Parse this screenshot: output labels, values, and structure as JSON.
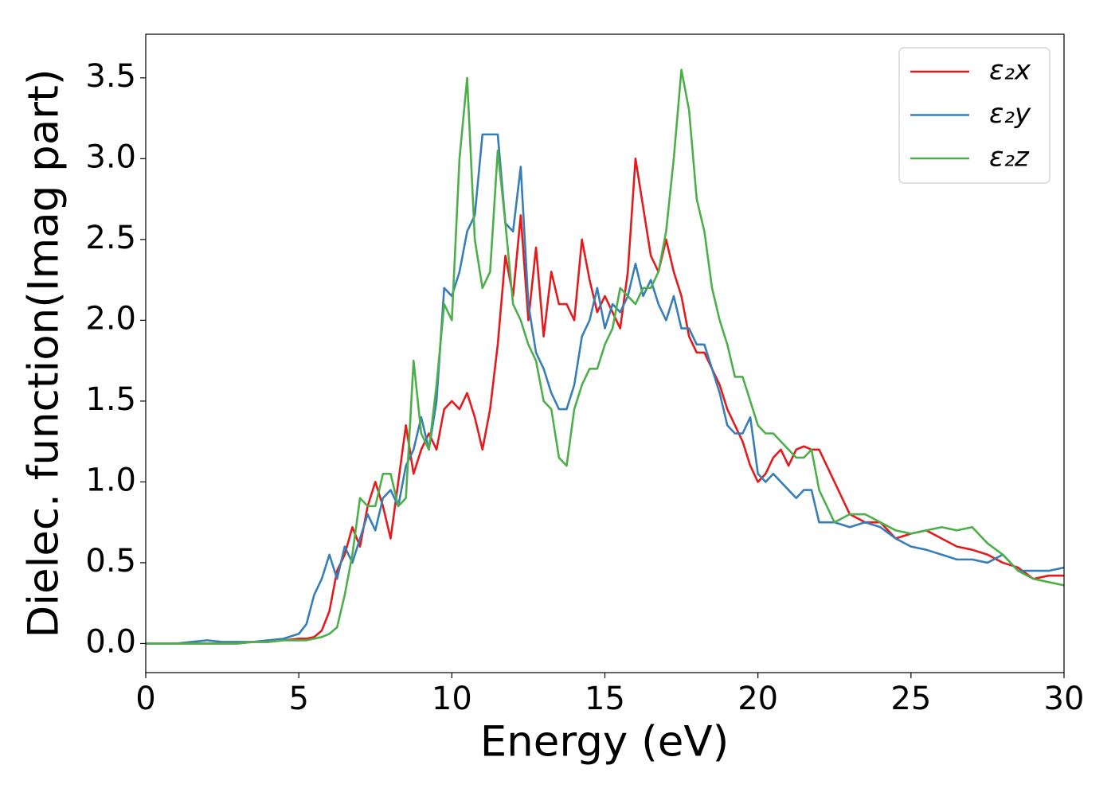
{
  "chart_data": {
    "type": "line",
    "xlabel": "Energy (eV)",
    "ylabel": "Dielec. function(Imag part)",
    "x": [
      0,
      0.5,
      1,
      1.5,
      2,
      2.5,
      3,
      3.5,
      4,
      4.5,
      5,
      5.25,
      5.5,
      5.75,
      6,
      6.25,
      6.5,
      6.75,
      7,
      7.25,
      7.5,
      7.75,
      8,
      8.25,
      8.5,
      8.75,
      9,
      9.25,
      9.5,
      9.75,
      10,
      10.25,
      10.5,
      10.75,
      11,
      11.25,
      11.5,
      11.75,
      12,
      12.25,
      12.5,
      12.75,
      13,
      13.25,
      13.5,
      13.75,
      14,
      14.25,
      14.5,
      14.75,
      15,
      15.25,
      15.5,
      15.75,
      16,
      16.25,
      16.5,
      16.75,
      17,
      17.25,
      17.5,
      17.75,
      18,
      18.25,
      18.5,
      18.75,
      19,
      19.25,
      19.5,
      19.75,
      20,
      20.25,
      20.5,
      20.75,
      21,
      21.25,
      21.5,
      21.75,
      22,
      22.5,
      23,
      23.5,
      24,
      24.5,
      25,
      25.5,
      26,
      26.5,
      27,
      27.5,
      28,
      28.5,
      29,
      29.5,
      30
    ],
    "series": [
      {
        "name": "ε₂x",
        "color": "#e41a1c",
        "values": [
          0,
          0,
          0,
          0,
          0,
          0,
          0,
          0.01,
          0.01,
          0.02,
          0.03,
          0.03,
          0.04,
          0.08,
          0.2,
          0.45,
          0.55,
          0.72,
          0.6,
          0.85,
          1.0,
          0.85,
          0.65,
          1.0,
          1.35,
          1.05,
          1.2,
          1.3,
          1.2,
          1.45,
          1.5,
          1.45,
          1.55,
          1.4,
          1.2,
          1.45,
          1.85,
          2.4,
          2.15,
          2.65,
          2.0,
          2.45,
          1.9,
          2.3,
          2.1,
          2.1,
          2.0,
          2.5,
          2.25,
          2.05,
          2.15,
          2.05,
          1.95,
          2.3,
          3.0,
          2.7,
          2.4,
          2.3,
          2.5,
          2.3,
          2.15,
          1.9,
          1.8,
          1.8,
          1.7,
          1.6,
          1.45,
          1.35,
          1.25,
          1.1,
          1.0,
          1.05,
          1.15,
          1.2,
          1.1,
          1.2,
          1.22,
          1.2,
          1.2,
          1.0,
          0.8,
          0.75,
          0.75,
          0.65,
          0.68,
          0.7,
          0.65,
          0.6,
          0.58,
          0.55,
          0.5,
          0.47,
          0.4,
          0.42,
          0.42
        ]
      },
      {
        "name": "ε₂y",
        "color": "#377eb8",
        "values": [
          0,
          0,
          0,
          0.01,
          0.02,
          0.01,
          0.01,
          0.01,
          0.02,
          0.03,
          0.06,
          0.12,
          0.3,
          0.4,
          0.55,
          0.4,
          0.6,
          0.5,
          0.65,
          0.8,
          0.7,
          0.9,
          0.95,
          0.85,
          1.1,
          1.2,
          1.4,
          1.2,
          1.5,
          2.2,
          2.15,
          2.3,
          2.55,
          2.65,
          3.15,
          3.15,
          3.15,
          2.6,
          2.55,
          2.95,
          2.1,
          1.8,
          1.7,
          1.55,
          1.45,
          1.45,
          1.6,
          1.9,
          2.0,
          2.2,
          1.95,
          2.1,
          2.05,
          2.15,
          2.35,
          2.15,
          2.25,
          2.1,
          2.0,
          2.15,
          1.95,
          1.95,
          1.85,
          1.85,
          1.7,
          1.55,
          1.35,
          1.3,
          1.3,
          1.4,
          1.05,
          1.0,
          1.05,
          1.0,
          0.95,
          0.9,
          0.95,
          0.95,
          0.75,
          0.75,
          0.72,
          0.75,
          0.72,
          0.65,
          0.6,
          0.58,
          0.55,
          0.52,
          0.52,
          0.5,
          0.55,
          0.45,
          0.45,
          0.45,
          0.47
        ]
      },
      {
        "name": "ε₂z",
        "color": "#4daf4a",
        "values": [
          0,
          0,
          0,
          0,
          0,
          0,
          0,
          0.01,
          0.01,
          0.02,
          0.02,
          0.02,
          0.03,
          0.04,
          0.06,
          0.1,
          0.3,
          0.55,
          0.9,
          0.85,
          0.85,
          1.05,
          1.05,
          0.85,
          0.9,
          1.75,
          1.3,
          1.2,
          1.6,
          2.1,
          2.0,
          3.0,
          3.5,
          2.5,
          2.2,
          2.3,
          3.05,
          2.6,
          2.1,
          2.0,
          1.85,
          1.75,
          1.5,
          1.45,
          1.15,
          1.1,
          1.45,
          1.6,
          1.7,
          1.7,
          1.85,
          1.95,
          2.2,
          2.15,
          2.1,
          2.2,
          2.2,
          2.3,
          2.55,
          3.0,
          3.55,
          3.3,
          2.75,
          2.55,
          2.2,
          2.0,
          1.85,
          1.65,
          1.65,
          1.5,
          1.35,
          1.3,
          1.3,
          1.25,
          1.2,
          1.15,
          1.15,
          1.2,
          0.95,
          0.75,
          0.8,
          0.8,
          0.75,
          0.7,
          0.68,
          0.7,
          0.72,
          0.7,
          0.72,
          0.62,
          0.55,
          0.45,
          0.4,
          0.38,
          0.36
        ]
      }
    ],
    "xlim": [
      0,
      30
    ],
    "xticks": [
      0,
      5,
      10,
      15,
      20,
      25,
      30
    ],
    "ylim": [
      -0.18,
      3.77
    ],
    "yticks": [
      {
        "value": 0,
        "label": "0.0"
      },
      {
        "value": 0.5,
        "label": "0.5"
      },
      {
        "value": 1,
        "label": "1.0"
      },
      {
        "value": 1.5,
        "label": "1.5"
      },
      {
        "value": 2,
        "label": "2.0"
      },
      {
        "value": 2.5,
        "label": "2.5"
      },
      {
        "value": 3,
        "label": "3.0"
      },
      {
        "value": 3.5,
        "label": "3.5"
      }
    ],
    "legend": "upper right"
  }
}
